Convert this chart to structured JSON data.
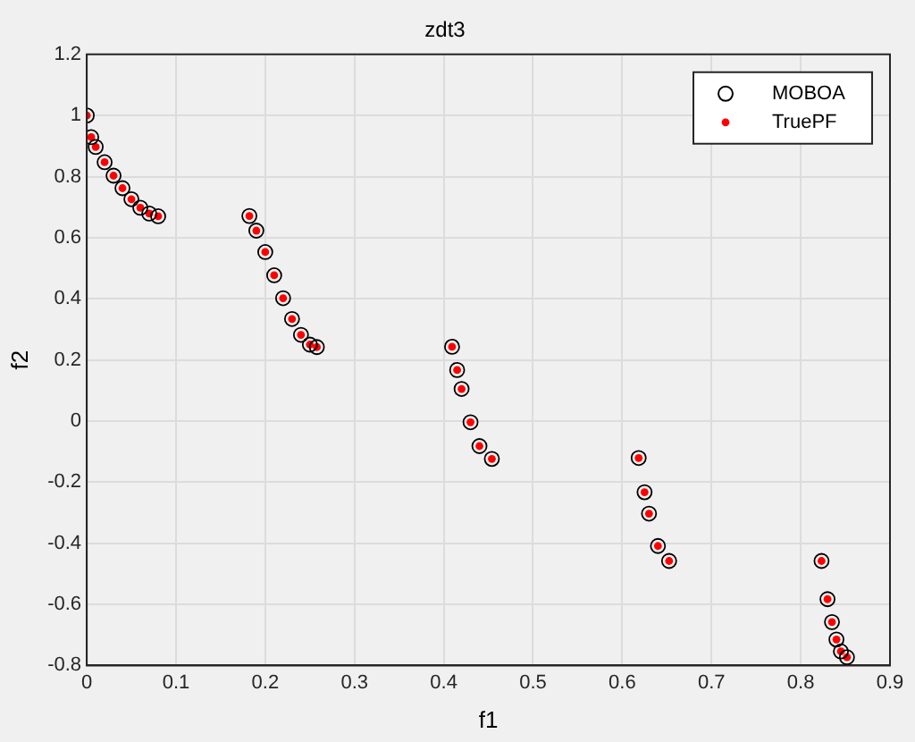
{
  "chart_data": {
    "type": "scatter",
    "title": "zdt3",
    "xlabel": "f1",
    "ylabel": "f2",
    "xlim": [
      0,
      0.9
    ],
    "xticks": [
      0,
      0.1,
      0.2,
      0.3,
      0.4,
      0.5,
      0.6,
      0.7,
      0.8,
      0.9
    ],
    "ylim": [
      -0.8,
      1.2
    ],
    "yticks": [
      -0.8,
      -0.6,
      -0.4,
      -0.2,
      0,
      0.2,
      0.4,
      0.6,
      0.8,
      1,
      1.2
    ],
    "grid": true,
    "legend": "top right",
    "series": [
      {
        "name": "MOBOA",
        "color": "#000000",
        "marker": "circle",
        "x": [
          0,
          0.005,
          0.01,
          0.02,
          0.03,
          0.04,
          0.05,
          0.06,
          0.07,
          0.08,
          0.1822,
          0.19,
          0.2,
          0.21,
          0.22,
          0.23,
          0.24,
          0.25,
          0.2578,
          0.4093,
          0.415,
          0.42,
          0.43,
          0.44,
          0.4539,
          0.6184,
          0.625,
          0.63,
          0.64,
          0.6525,
          0.8233,
          0.83,
          0.835,
          0.84,
          0.845,
          0.8518
        ],
        "values": [
          1,
          0.929,
          0.897,
          0.847,
          0.803,
          0.762,
          0.726,
          0.698,
          0.679,
          0.67,
          0.671,
          0.623,
          0.553,
          0.477,
          0.402,
          0.334,
          0.282,
          0.25,
          0.242,
          0.243,
          0.167,
          0.105,
          -0.004,
          -0.082,
          -0.124,
          -0.121,
          -0.233,
          -0.303,
          -0.409,
          -0.458,
          -0.458,
          -0.583,
          -0.658,
          -0.715,
          -0.754,
          -0.773
        ]
      },
      {
        "name": "TruePF",
        "color": "#ff0000",
        "marker": "circle",
        "x": [
          0,
          0.005,
          0.01,
          0.02,
          0.03,
          0.04,
          0.05,
          0.06,
          0.07,
          0.08,
          0.1822,
          0.19,
          0.2,
          0.21,
          0.22,
          0.23,
          0.24,
          0.25,
          0.2578,
          0.4093,
          0.415,
          0.42,
          0.43,
          0.44,
          0.4539,
          0.6184,
          0.625,
          0.63,
          0.64,
          0.6525,
          0.8233,
          0.83,
          0.835,
          0.84,
          0.845,
          0.8518
        ],
        "values": [
          1,
          0.929,
          0.897,
          0.847,
          0.803,
          0.762,
          0.726,
          0.698,
          0.679,
          0.67,
          0.671,
          0.623,
          0.553,
          0.477,
          0.402,
          0.334,
          0.282,
          0.25,
          0.242,
          0.243,
          0.167,
          0.105,
          -0.004,
          -0.082,
          -0.124,
          -0.121,
          -0.233,
          -0.303,
          -0.409,
          -0.458,
          -0.458,
          -0.583,
          -0.658,
          -0.715,
          -0.754,
          -0.773
        ]
      }
    ]
  }
}
